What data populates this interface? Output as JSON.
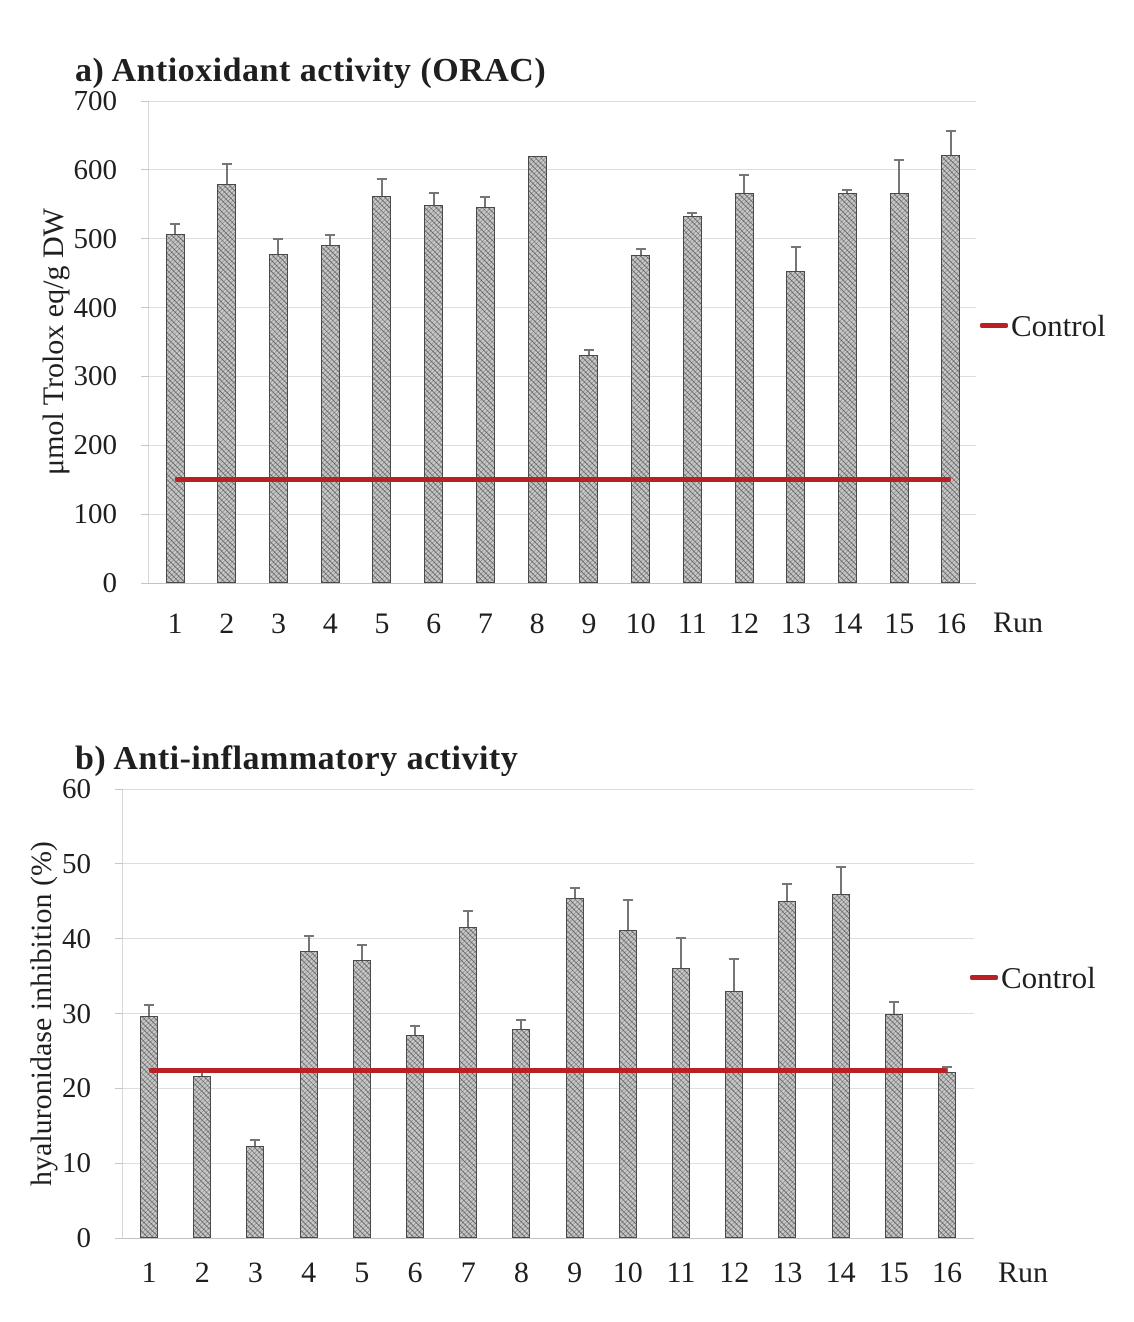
{
  "chart_data": [
    {
      "type": "bar",
      "panel": "a",
      "title": "a) Antioxidant activity (ORAC)",
      "ylabel": "μmol Trolox eq/g DW",
      "xlabel": "Run",
      "ylim": [
        0,
        700
      ],
      "yticks": [
        0,
        100,
        200,
        300,
        400,
        500,
        600,
        700
      ],
      "grid": true,
      "legend_position": "right",
      "categories": [
        "1",
        "2",
        "3",
        "4",
        "5",
        "6",
        "7",
        "8",
        "9",
        "10",
        "11",
        "12",
        "13",
        "14",
        "15",
        "16"
      ],
      "values": [
        507,
        580,
        478,
        491,
        562,
        549,
        546,
        620,
        331,
        476,
        533,
        566,
        453,
        566,
        567,
        622
      ],
      "errors": [
        15,
        28,
        22,
        15,
        25,
        18,
        15,
        0,
        8,
        9,
        4,
        27,
        35,
        5,
        48,
        34
      ],
      "control": {
        "label": "Control",
        "value": 151,
        "color": "#b92025"
      },
      "bar_color": "#c9c9c9",
      "bar_style": "diagonal-hatch"
    },
    {
      "type": "bar",
      "panel": "b",
      "title": "b) Anti-inflammatory activity",
      "ylabel": "hyaluronidase inhibition (%)",
      "xlabel": "Run",
      "ylim": [
        0,
        60
      ],
      "yticks": [
        0,
        10,
        20,
        30,
        40,
        50,
        60
      ],
      "grid": true,
      "legend_position": "right",
      "categories": [
        "1",
        "2",
        "3",
        "4",
        "5",
        "6",
        "7",
        "8",
        "9",
        "10",
        "11",
        "12",
        "13",
        "14",
        "15",
        "16"
      ],
      "values": [
        29.7,
        21.7,
        12.3,
        38.3,
        37.2,
        27.1,
        41.5,
        27.9,
        45.4,
        41.2,
        36.1,
        33.0,
        45.0,
        46.0,
        30.0,
        22.2
      ],
      "errors": [
        1.4,
        0.5,
        0.8,
        2.0,
        2.0,
        1.2,
        2.2,
        1.2,
        1.4,
        4.0,
        4.0,
        4.3,
        2.3,
        3.6,
        1.6,
        0.7
      ],
      "control": {
        "label": "Control",
        "value": 22.4,
        "color": "#b92025"
      },
      "bar_color": "#c9c9c9",
      "bar_style": "diagonal-hatch"
    }
  ]
}
